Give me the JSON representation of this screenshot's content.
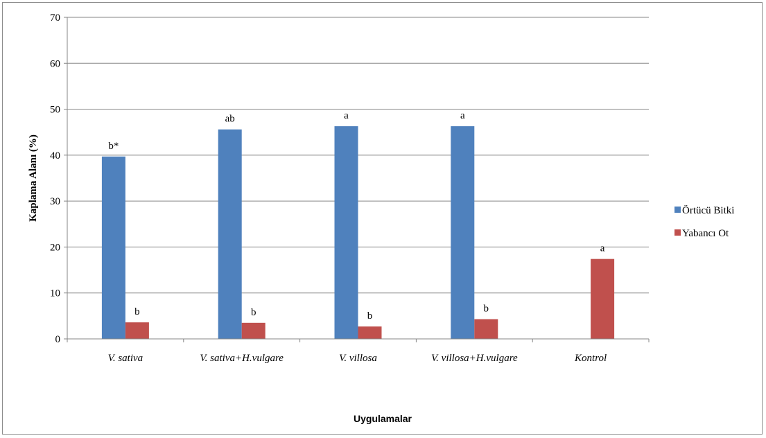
{
  "chart_data": {
    "type": "bar",
    "title": "",
    "xlabel": "Uygulamalar",
    "ylabel": "Kaplama Alanı (%)",
    "ylim": [
      0,
      70
    ],
    "yticks": [
      "0",
      "10",
      "20",
      "30",
      "40",
      "50",
      "60",
      "70"
    ],
    "grid": true,
    "legend_position": "right",
    "categories": [
      "V. sativa",
      "V. sativa+H.vulgare",
      "V. villosa",
      "V. villosa+H.vulgare",
      "Kontrol"
    ],
    "series": [
      {
        "name": "Örtücü Bitki",
        "color": "#4f81bd",
        "values": [
          39.7,
          45.6,
          46.3,
          46.3,
          null
        ],
        "labels": [
          "b*",
          "ab",
          "a",
          "a",
          ""
        ]
      },
      {
        "name": "Yabancı Ot",
        "color": "#c0504d",
        "values": [
          3.6,
          3.5,
          2.7,
          4.3,
          17.4
        ],
        "labels": [
          "b",
          "b",
          "b",
          "b",
          "a"
        ]
      }
    ]
  }
}
